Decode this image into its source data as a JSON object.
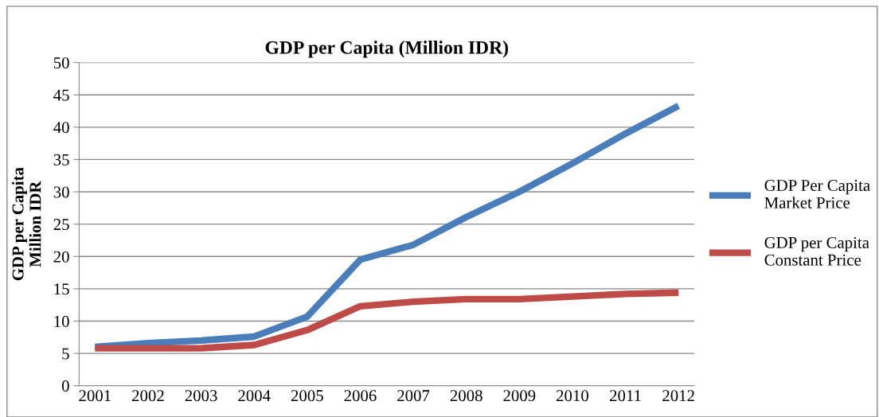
{
  "chart_data": {
    "type": "line",
    "title": "GDP per Capita (Million IDR)",
    "ylabel": "GDP per Capita\nMillion IDR",
    "categories": [
      "2001",
      "2002",
      "2003",
      "2004",
      "2005",
      "2006",
      "2007",
      "2008",
      "2009",
      "2010",
      "2011",
      "2012"
    ],
    "series": [
      {
        "name": "GDP Per Capita\nMarket Price",
        "color": "#4a7ebb",
        "values": [
          6.0,
          6.6,
          7.0,
          7.6,
          10.7,
          19.5,
          21.8,
          26.1,
          30.0,
          34.4,
          39.0,
          43.3
        ]
      },
      {
        "name": "GDP per Capita\nConstant Price",
        "color": "#be4b48",
        "values": [
          5.8,
          5.8,
          5.8,
          6.3,
          8.6,
          12.3,
          13.0,
          13.4,
          13.4,
          13.8,
          14.2,
          14.4
        ]
      }
    ],
    "ylim": [
      0,
      50
    ],
    "yticks": [
      0,
      5,
      10,
      15,
      20,
      25,
      30,
      35,
      40,
      45,
      50
    ],
    "grid": "y",
    "legend": "right",
    "marker": "none",
    "line_style": "solid"
  }
}
